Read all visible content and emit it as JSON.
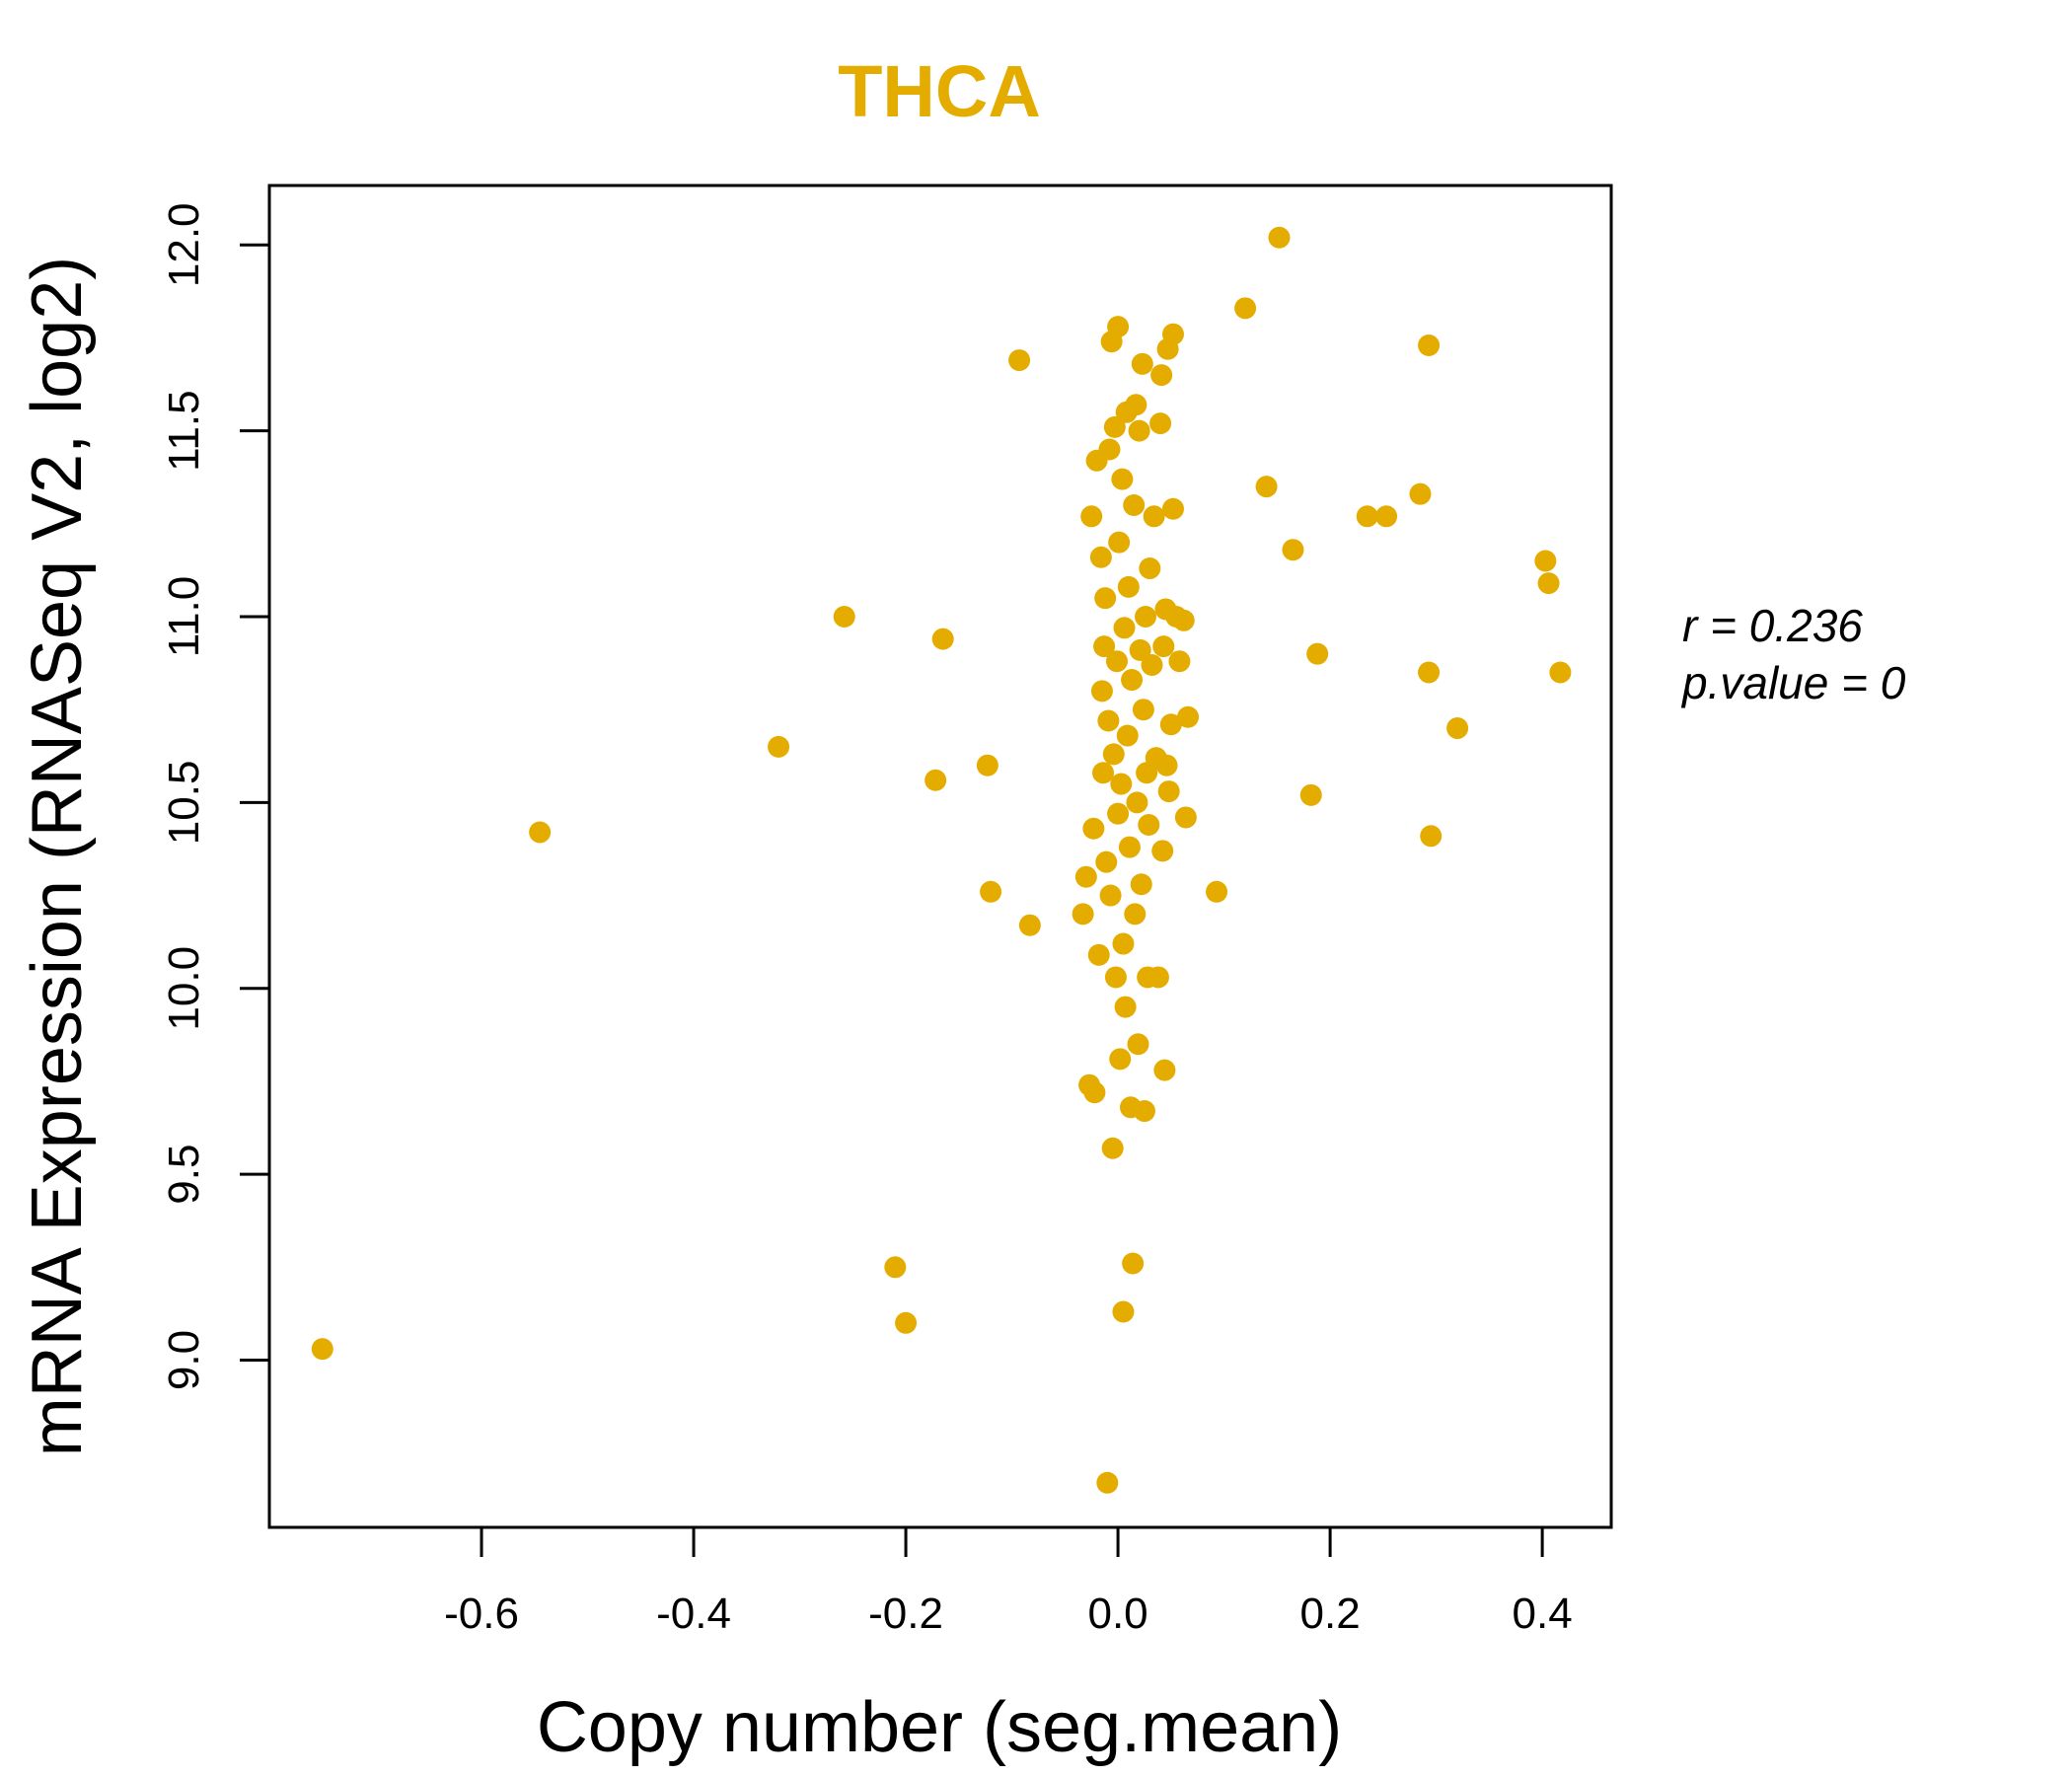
{
  "chart_data": {
    "type": "scatter",
    "title": "THCA",
    "xlabel": "Copy number (seg.mean)",
    "ylabel": "mRNA Expression (RNASeq V2, log2)",
    "xlim": [
      -0.8,
      0.465
    ],
    "ylim": [
      8.55,
      12.16
    ],
    "x_ticks": [
      -0.6,
      -0.4,
      -0.2,
      0.0,
      0.2,
      0.4
    ],
    "x_tick_labels": [
      "-0.6",
      "-0.4",
      "-0.2",
      "0.0",
      "0.2",
      "0.4"
    ],
    "y_ticks": [
      9.0,
      9.5,
      10.0,
      10.5,
      11.0,
      11.5,
      12.0
    ],
    "y_tick_labels": [
      "9.0",
      "9.5",
      "10.0",
      "10.5",
      "11.0",
      "11.5",
      "12.0"
    ],
    "grid": false,
    "point_color": "#E5AC00",
    "annotation": {
      "r_label": "r = 0.236",
      "p_label": "p.value = 0"
    },
    "points": [
      [
        -0.75,
        9.03
      ],
      [
        -0.545,
        10.42
      ],
      [
        -0.32,
        10.65
      ],
      [
        -0.258,
        11.0
      ],
      [
        -0.21,
        9.25
      ],
      [
        -0.2,
        9.1
      ],
      [
        -0.172,
        10.56
      ],
      [
        -0.165,
        10.94
      ],
      [
        -0.123,
        10.6
      ],
      [
        -0.12,
        10.26
      ],
      [
        -0.093,
        11.69
      ],
      [
        -0.083,
        10.17
      ],
      [
        -0.033,
        10.2
      ],
      [
        -0.03,
        10.3
      ],
      [
        -0.027,
        9.74
      ],
      [
        -0.025,
        11.27
      ],
      [
        -0.023,
        10.43
      ],
      [
        -0.022,
        9.72
      ],
      [
        -0.02,
        11.42
      ],
      [
        -0.018,
        10.09
      ],
      [
        -0.016,
        11.16
      ],
      [
        -0.015,
        10.8
      ],
      [
        -0.014,
        10.58
      ],
      [
        -0.013,
        10.92
      ],
      [
        -0.012,
        11.05
      ],
      [
        -0.011,
        10.34
      ],
      [
        -0.01,
        8.67
      ],
      [
        -0.009,
        10.72
      ],
      [
        -0.008,
        11.45
      ],
      [
        -0.007,
        10.25
      ],
      [
        -0.006,
        11.74
      ],
      [
        -0.005,
        9.57
      ],
      [
        -0.004,
        10.63
      ],
      [
        -0.003,
        11.51
      ],
      [
        -0.002,
        10.03
      ],
      [
        -0.001,
        10.88
      ],
      [
        0.0,
        11.78
      ],
      [
        0.0,
        10.47
      ],
      [
        0.001,
        11.2
      ],
      [
        0.002,
        9.81
      ],
      [
        0.003,
        10.55
      ],
      [
        0.004,
        11.37
      ],
      [
        0.005,
        9.13
      ],
      [
        0.005,
        10.12
      ],
      [
        0.006,
        10.97
      ],
      [
        0.007,
        9.95
      ],
      [
        0.008,
        11.55
      ],
      [
        0.009,
        10.68
      ],
      [
        0.01,
        11.08
      ],
      [
        0.011,
        10.38
      ],
      [
        0.012,
        9.68
      ],
      [
        0.013,
        10.83
      ],
      [
        0.014,
        9.26
      ],
      [
        0.015,
        11.3
      ],
      [
        0.016,
        10.2
      ],
      [
        0.017,
        11.57
      ],
      [
        0.018,
        10.5
      ],
      [
        0.019,
        9.85
      ],
      [
        0.02,
        11.5
      ],
      [
        0.021,
        10.91
      ],
      [
        0.022,
        10.28
      ],
      [
        0.023,
        11.68
      ],
      [
        0.024,
        10.75
      ],
      [
        0.025,
        9.67
      ],
      [
        0.026,
        11.0
      ],
      [
        0.027,
        10.58
      ],
      [
        0.028,
        10.03
      ],
      [
        0.029,
        10.44
      ],
      [
        0.03,
        11.13
      ],
      [
        0.032,
        10.87
      ],
      [
        0.034,
        11.27
      ],
      [
        0.036,
        10.62
      ],
      [
        0.038,
        10.03
      ],
      [
        0.04,
        11.52
      ],
      [
        0.041,
        11.65
      ],
      [
        0.042,
        10.37
      ],
      [
        0.043,
        10.92
      ],
      [
        0.044,
        9.78
      ],
      [
        0.045,
        11.02
      ],
      [
        0.046,
        10.6
      ],
      [
        0.047,
        11.72
      ],
      [
        0.048,
        10.53
      ],
      [
        0.05,
        10.71
      ],
      [
        0.052,
        11.29
      ],
      [
        0.052,
        11.76
      ],
      [
        0.055,
        11.0
      ],
      [
        0.058,
        10.88
      ],
      [
        0.062,
        10.99
      ],
      [
        0.064,
        10.46
      ],
      [
        0.066,
        10.73
      ],
      [
        0.093,
        10.26
      ],
      [
        0.12,
        11.83
      ],
      [
        0.14,
        11.35
      ],
      [
        0.152,
        12.02
      ],
      [
        0.165,
        11.18
      ],
      [
        0.182,
        10.52
      ],
      [
        0.188,
        10.9
      ],
      [
        0.235,
        11.27
      ],
      [
        0.253,
        11.27
      ],
      [
        0.285,
        11.33
      ],
      [
        0.293,
        11.73
      ],
      [
        0.293,
        10.85
      ],
      [
        0.295,
        10.41
      ],
      [
        0.32,
        10.7
      ],
      [
        0.403,
        11.15
      ],
      [
        0.406,
        11.09
      ],
      [
        0.417,
        10.85
      ]
    ]
  }
}
